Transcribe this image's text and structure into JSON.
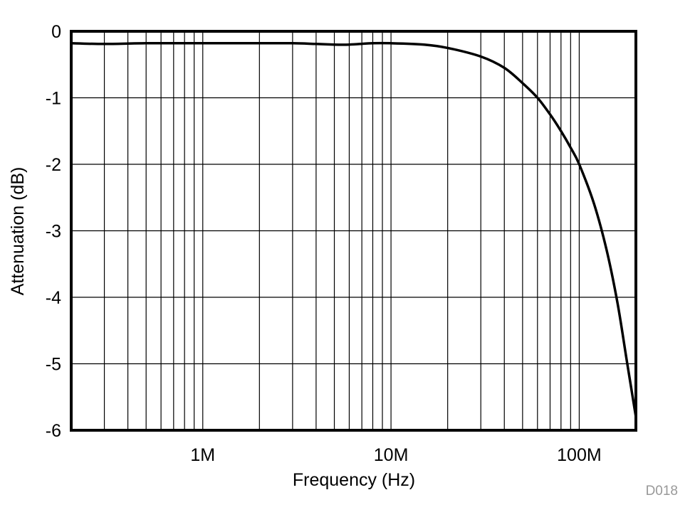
{
  "chart_data": {
    "type": "line",
    "title": "",
    "xlabel": "Frequency (Hz)",
    "ylabel": "Attenuation (dB)",
    "xscale": "log",
    "xlim": [
      200000,
      200000000
    ],
    "ylim": [
      -6,
      0
    ],
    "grid": true,
    "legend": null,
    "x_tick_labels": [
      {
        "value": 1000000,
        "label": "1M"
      },
      {
        "value": 10000000,
        "label": "10M"
      },
      {
        "value": 100000000,
        "label": "100M"
      }
    ],
    "y_tick_labels": [
      {
        "value": 0,
        "label": "0"
      },
      {
        "value": -1,
        "label": "-1"
      },
      {
        "value": -2,
        "label": "-2"
      },
      {
        "value": -3,
        "label": "-3"
      },
      {
        "value": -4,
        "label": "-4"
      },
      {
        "value": -5,
        "label": "-5"
      },
      {
        "value": -6,
        "label": "-6"
      }
    ],
    "series": [
      {
        "name": "Attenuation",
        "color": "#000000",
        "x": [
          200000,
          300000,
          500000,
          1000000,
          2000000,
          3000000,
          4000000,
          5000000,
          6000000,
          8000000,
          10000000,
          15000000,
          20000000,
          30000000,
          40000000,
          50000000,
          60000000,
          70000000,
          80000000,
          90000000,
          100000000,
          120000000,
          140000000,
          160000000,
          180000000,
          200000000
        ],
        "y": [
          -0.18,
          -0.19,
          -0.18,
          -0.18,
          -0.18,
          -0.18,
          -0.19,
          -0.2,
          -0.2,
          -0.18,
          -0.18,
          -0.2,
          -0.25,
          -0.38,
          -0.55,
          -0.78,
          -1.0,
          -1.25,
          -1.5,
          -1.75,
          -2.0,
          -2.6,
          -3.3,
          -4.1,
          -5.0,
          -5.8
        ]
      }
    ],
    "annotations": [
      "D018"
    ]
  },
  "labels": {
    "xlabel": "Frequency (Hz)",
    "ylabel": "Attenuation (dB)",
    "figure_code": "D018"
  }
}
